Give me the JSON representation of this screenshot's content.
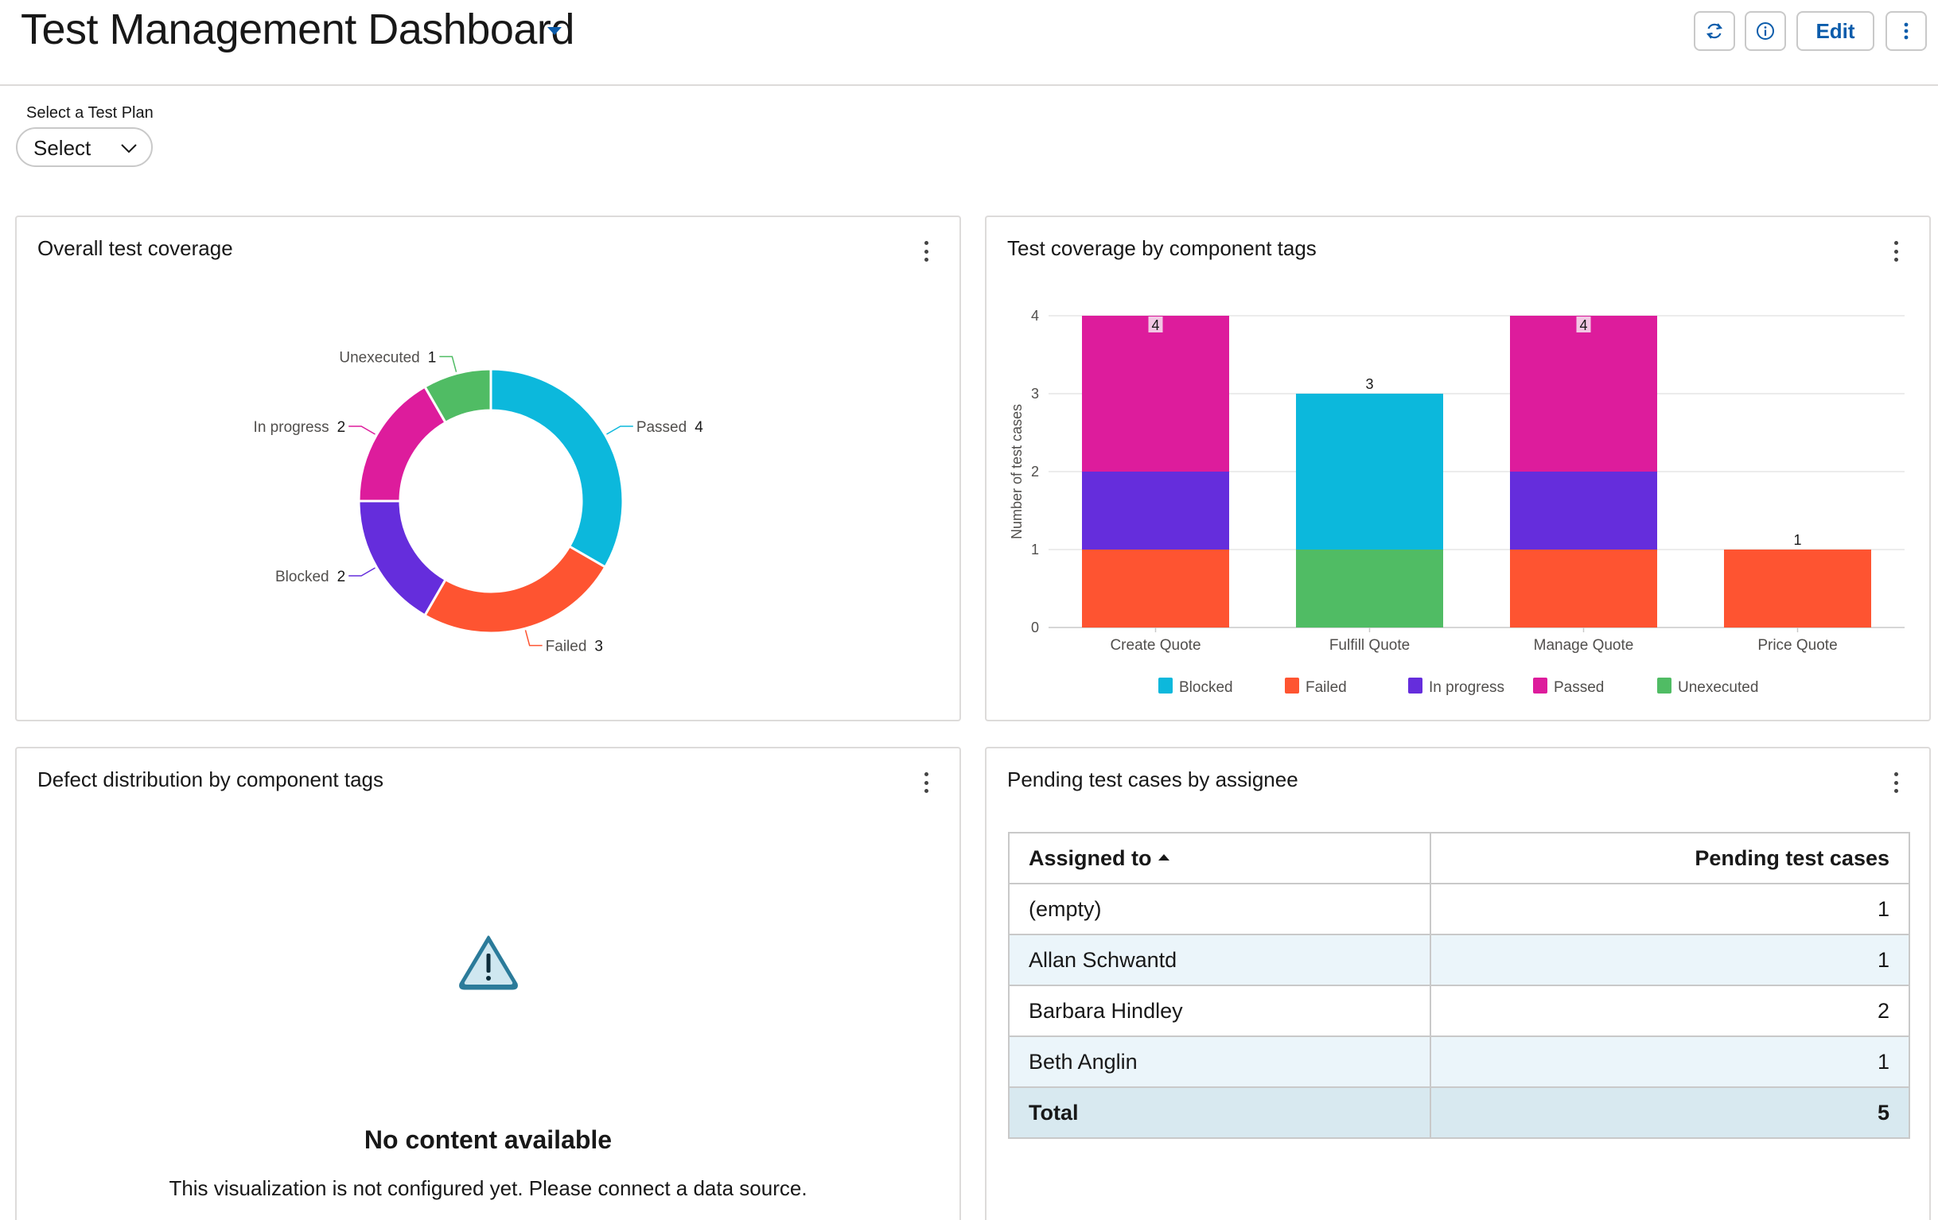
{
  "header": {
    "title": "Test Management Dashboard",
    "edit_label": "Edit",
    "accent_color": "#0b5cab"
  },
  "plan_select": {
    "label": "Select a Test Plan",
    "value": "Select"
  },
  "cards": {
    "overall": {
      "title": "Overall test coverage"
    },
    "by_component": {
      "title": "Test coverage by component tags"
    },
    "defect": {
      "title": "Defect distribution by component tags",
      "empty_title": "No content available",
      "empty_message": "This visualization is not configured yet. Please connect a data source."
    },
    "pending": {
      "title": "Pending test cases by assignee",
      "columns": [
        "Assigned to",
        "Pending test cases"
      ],
      "rows": [
        {
          "name": "(empty)",
          "count": "1"
        },
        {
          "name": "Allan Schwantd",
          "count": "1"
        },
        {
          "name": "Barbara Hindley",
          "count": "2"
        },
        {
          "name": "Beth Anglin",
          "count": "1"
        }
      ],
      "total": {
        "name": "Total",
        "count": "5"
      }
    }
  },
  "chart_data": [
    {
      "type": "pie",
      "title": "Overall test coverage",
      "labels": [
        "Passed",
        "Failed",
        "Blocked",
        "In progress",
        "Unexecuted"
      ],
      "values": [
        4,
        3,
        2,
        2,
        1
      ],
      "colors": [
        "#0cb8dc",
        "#fe5431",
        "#652ddc",
        "#dd1c9c",
        "#50bc64"
      ]
    },
    {
      "type": "bar",
      "stacked": true,
      "title": "Test coverage by component tags",
      "ylabel": "Number of test cases",
      "xlabel": "",
      "categories": [
        "Create Quote",
        "Fulfill Quote",
        "Manage Quote",
        "Price Quote"
      ],
      "ylim": [
        0,
        4
      ],
      "yticks": [
        0,
        1,
        2,
        3,
        4
      ],
      "grid": true,
      "legend_position": "bottom",
      "series": [
        {
          "name": "Blocked",
          "values": [
            0,
            0,
            0,
            0
          ],
          "color": "#0cb8dc"
        },
        {
          "name": "Failed",
          "values": [
            1,
            0,
            1,
            1
          ],
          "color": "#fe5431"
        },
        {
          "name": "In progress",
          "values": [
            1,
            0,
            1,
            0
          ],
          "color": "#652ddc"
        },
        {
          "name": "Passed",
          "values": [
            2,
            0,
            2,
            0
          ],
          "color": "#dd1c9c"
        },
        {
          "name": "Unexecuted",
          "values": [
            0,
            1,
            0,
            0
          ],
          "color": "#50bc64"
        },
        {
          "name": "",
          "values": [
            0,
            2,
            0,
            0
          ],
          "color": "#0cb8dc"
        }
      ],
      "totals": [
        4,
        3,
        4,
        1
      ]
    }
  ]
}
